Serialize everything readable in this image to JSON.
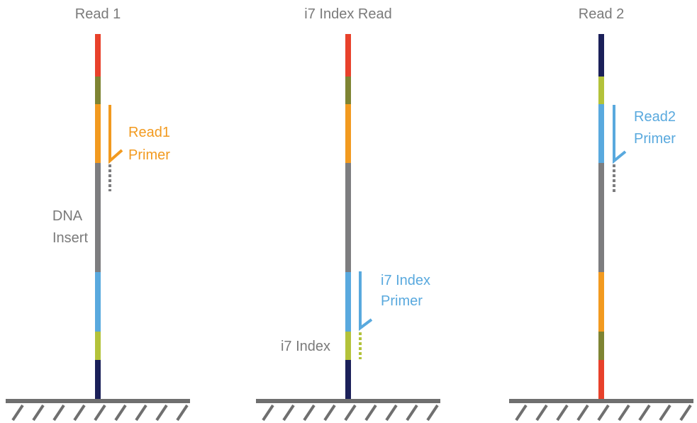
{
  "colors": {
    "red": "#e8412b",
    "olive": "#7e8433",
    "orange": "#f29a1f",
    "gray": "#7d7d7f",
    "blue": "#59a9de",
    "lime": "#b3c23a",
    "navy": "#1b2059",
    "ground": "#6f6f6f"
  },
  "panels": [
    {
      "title": "Read 1",
      "segments": [
        "red",
        "olive",
        "orange",
        "gray",
        "blue",
        "lime",
        "navy"
      ],
      "primer": {
        "line1": "Read1",
        "line2": "Primer",
        "color": "orange",
        "dotted_color": "gray"
      }
    },
    {
      "title": "i7 Index Read",
      "segments": [
        "red",
        "olive",
        "orange",
        "gray",
        "blue",
        "lime",
        "navy"
      ],
      "primer": {
        "line1": "i7 Index",
        "line2": "Primer",
        "color": "blue",
        "dotted_color": "lime"
      }
    },
    {
      "title": "Read 2",
      "segments": [
        "navy",
        "lime",
        "blue",
        "gray",
        "orange",
        "olive",
        "red"
      ],
      "primer": {
        "line1": "Read2",
        "line2": "Primer",
        "color": "blue",
        "dotted_color": "gray"
      }
    }
  ],
  "annotations": {
    "dna_insert_line1": "DNA",
    "dna_insert_line2": "Insert",
    "i7_index": "i7 Index"
  }
}
